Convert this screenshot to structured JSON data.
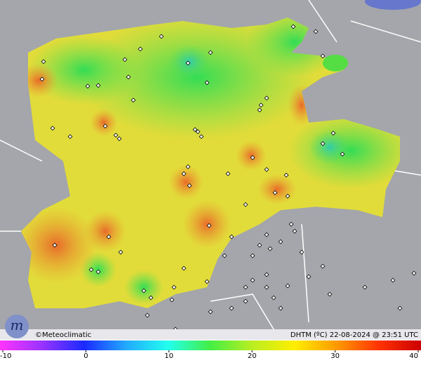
{
  "footer": {
    "credit": "©Meteoclimatic",
    "caption": "DHTM (ºC) 22-08-2024 @ 23:51 UTC"
  },
  "legend": {
    "range": [
      -10,
      40
    ],
    "ticks": [
      -10,
      0,
      10,
      20,
      30,
      40
    ]
  }
}
